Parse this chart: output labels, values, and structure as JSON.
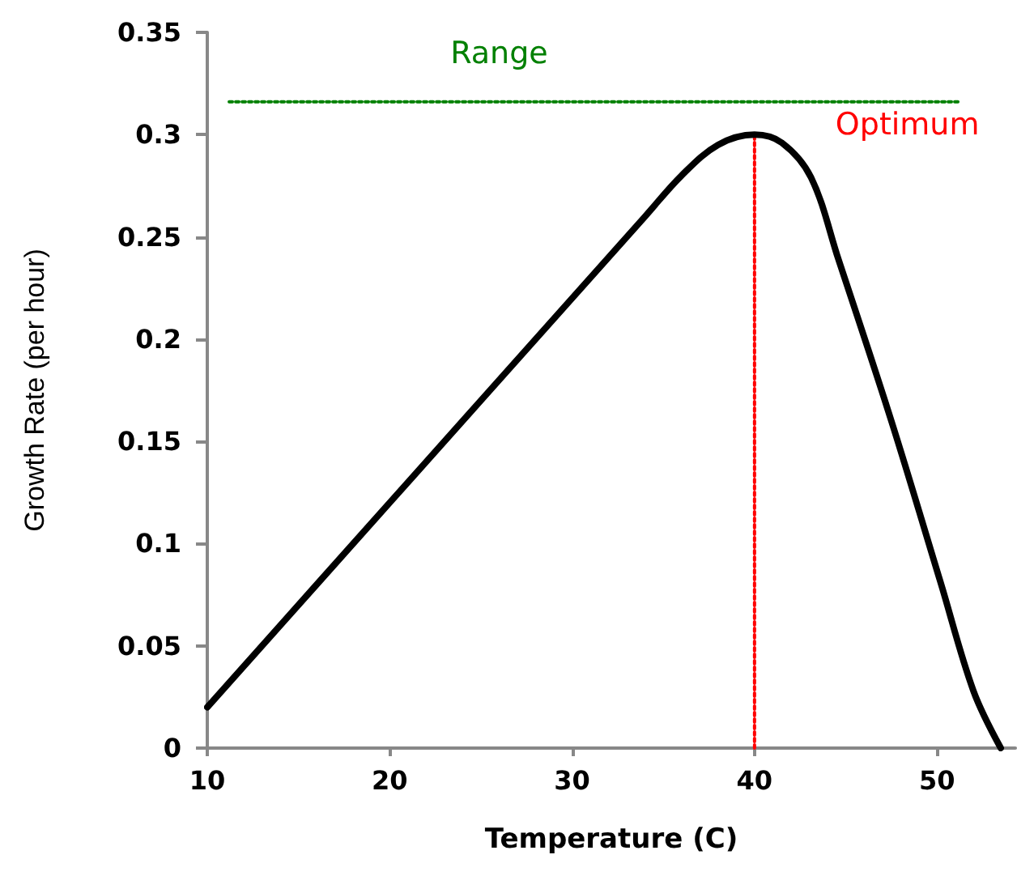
{
  "chart_data": {
    "type": "line",
    "xlabel": "Temperature (C)",
    "ylabel": "Growth Rate (per hour)",
    "xlim": [
      10,
      54.3
    ],
    "xticks": [
      10,
      20,
      30,
      40,
      50
    ],
    "ylim": [
      0,
      0.35
    ],
    "yticks": [
      0,
      0.05,
      0.1,
      0.15,
      0.2,
      0.25,
      0.3,
      0.35
    ],
    "grid": false,
    "legend": false,
    "marker": "none",
    "series": [
      {
        "color": "#000000",
        "line_style": "solid",
        "x": [
          10,
          20,
          30,
          34,
          36,
          38,
          40,
          41.5,
          43.1,
          44.6,
          47.5,
          50.2,
          52,
          53.5
        ],
        "values": [
          0.02,
          0.12,
          0.22,
          0.26,
          0.28,
          0.295,
          0.3,
          0.296,
          0.279,
          0.239,
          0.16,
          0.081,
          0.028,
          0
        ]
      },
      {
        "name": "Range",
        "color": "#008000",
        "line_style": "dotted",
        "x": [
          11.2,
          51.2
        ],
        "values": [
          0.316,
          0.316
        ]
      },
      {
        "name": "Optimum",
        "color": "#ff0000",
        "line_style": "dotted",
        "x": [
          40,
          40
        ],
        "values": [
          0,
          0.3
        ]
      }
    ]
  }
}
